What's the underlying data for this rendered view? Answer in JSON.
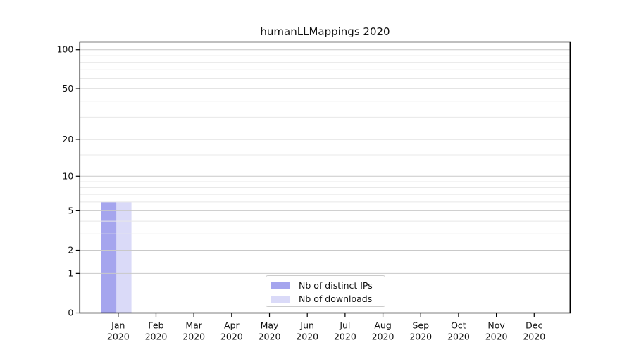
{
  "chart_data": {
    "type": "bar",
    "title": "humanLLMappings 2020",
    "categories": [
      {
        "month": "Jan",
        "year": "2020"
      },
      {
        "month": "Feb",
        "year": "2020"
      },
      {
        "month": "Mar",
        "year": "2020"
      },
      {
        "month": "Apr",
        "year": "2020"
      },
      {
        "month": "May",
        "year": "2020"
      },
      {
        "month": "Jun",
        "year": "2020"
      },
      {
        "month": "Jul",
        "year": "2020"
      },
      {
        "month": "Aug",
        "year": "2020"
      },
      {
        "month": "Sep",
        "year": "2020"
      },
      {
        "month": "Oct",
        "year": "2020"
      },
      {
        "month": "Nov",
        "year": "2020"
      },
      {
        "month": "Dec",
        "year": "2020"
      }
    ],
    "series": [
      {
        "name": "Nb of distinct IPs",
        "color": "#a5a5ee",
        "values": [
          6,
          0,
          0,
          0,
          0,
          0,
          0,
          0,
          0,
          0,
          0,
          0
        ]
      },
      {
        "name": "Nb of downloads",
        "color": "#dadaf8",
        "values": [
          6,
          0,
          0,
          0,
          0,
          0,
          0,
          0,
          0,
          0,
          0,
          0
        ]
      }
    ],
    "xlabel": "",
    "ylabel": "",
    "y_scale": "log1p",
    "ylim": [
      0,
      115
    ],
    "y_major_ticks": [
      100,
      50,
      20,
      10,
      5,
      2,
      1,
      0
    ],
    "y_minor_gridlines": [
      3,
      4,
      6,
      7,
      8,
      9,
      15,
      30,
      40,
      60,
      70,
      80,
      90
    ],
    "grid": "horizontal",
    "legend_position": "inside-bottom-center",
    "colors": {
      "major_grid": "#c9c9c9",
      "minor_grid": "#e8e8e8",
      "spine": "#000000",
      "tick": "#000000",
      "text": "#111111",
      "legend_border": "#cccccc",
      "legend_background": "#ffffff"
    }
  }
}
